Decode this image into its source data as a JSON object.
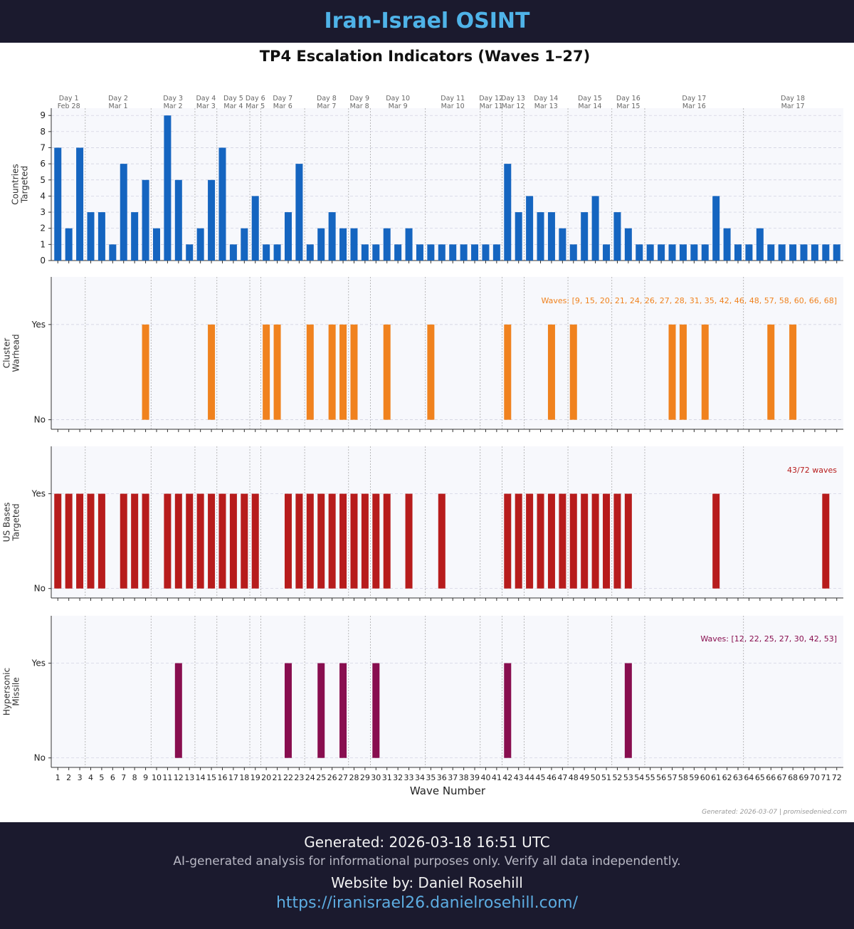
{
  "header": {
    "title": "Iran-Israel OSINT"
  },
  "figure": {
    "title": "TP4 Escalation Indicators (Waves 1–27)",
    "xlabel": "Wave Number",
    "note": "Generated: 2026-03-07 | promisedenied.com",
    "days": [
      {
        "label": "Day 1",
        "date": "Feb 28",
        "waves": [
          1,
          3
        ]
      },
      {
        "label": "Day 2",
        "date": "Mar 1",
        "waves": [
          4,
          9
        ]
      },
      {
        "label": "Day 3",
        "date": "Mar 2",
        "waves": [
          10,
          13
        ]
      },
      {
        "label": "Day 4",
        "date": "Mar 3",
        "waves": [
          14,
          15
        ]
      },
      {
        "label": "Day 5",
        "date": "Mar 4",
        "waves": [
          16,
          18
        ]
      },
      {
        "label": "Day 6",
        "date": "Mar 5",
        "waves": [
          19,
          19
        ]
      },
      {
        "label": "Day 7",
        "date": "Mar 6",
        "waves": [
          20,
          23
        ]
      },
      {
        "label": "Day 8",
        "date": "Mar 7",
        "waves": [
          24,
          27
        ]
      },
      {
        "label": "Day 9",
        "date": "Mar 8",
        "waves": [
          28,
          29
        ]
      },
      {
        "label": "Day 10",
        "date": "Mar 9",
        "waves": [
          30,
          34
        ]
      },
      {
        "label": "Day 11",
        "date": "Mar 10",
        "waves": [
          35,
          39
        ]
      },
      {
        "label": "Day 12",
        "date": "Mar 11",
        "waves": [
          40,
          41
        ]
      },
      {
        "label": "Day 13",
        "date": "Mar 12",
        "waves": [
          42,
          43
        ]
      },
      {
        "label": "Day 14",
        "date": "Mar 13",
        "waves": [
          44,
          47
        ]
      },
      {
        "label": "Day 15",
        "date": "Mar 14",
        "waves": [
          48,
          51
        ]
      },
      {
        "label": "Day 16",
        "date": "Mar 15",
        "waves": [
          52,
          54
        ]
      },
      {
        "label": "Day 17",
        "date": "Mar 16",
        "waves": [
          55,
          63
        ]
      },
      {
        "label": "Day 18",
        "date": "Mar 17",
        "waves": [
          64,
          72
        ]
      }
    ]
  },
  "chart_data": [
    {
      "type": "bar",
      "ylabel": [
        "Countries",
        "Targeted"
      ],
      "color": "#1565c0",
      "xlim": [
        0.4,
        72.6
      ],
      "ylim": [
        0,
        9.45
      ],
      "yticks": [
        0,
        1,
        2,
        3,
        4,
        5,
        6,
        7,
        8,
        9
      ],
      "grid": true,
      "x": [
        1,
        2,
        3,
        4,
        5,
        6,
        7,
        8,
        9,
        10,
        11,
        12,
        13,
        14,
        15,
        16,
        17,
        18,
        19,
        20,
        21,
        22,
        23,
        24,
        25,
        26,
        27,
        28,
        29,
        30,
        31,
        32,
        33,
        34,
        35,
        36,
        37,
        38,
        39,
        40,
        41,
        42,
        43,
        44,
        45,
        46,
        47,
        48,
        49,
        50,
        51,
        52,
        53,
        54,
        55,
        56,
        57,
        58,
        59,
        60,
        61,
        62,
        63,
        64,
        65,
        66,
        67,
        68,
        69,
        70,
        71,
        72
      ],
      "values": [
        7,
        2,
        7,
        3,
        3,
        1,
        6,
        3,
        5,
        2,
        9,
        5,
        1,
        2,
        5,
        7,
        1,
        2,
        4,
        1,
        1,
        3,
        6,
        1,
        2,
        3,
        2,
        2,
        1,
        1,
        2,
        1,
        2,
        1,
        1,
        1,
        1,
        1,
        1,
        1,
        1,
        6,
        3,
        4,
        3,
        3,
        2,
        1,
        3,
        4,
        1,
        3,
        2,
        1,
        1,
        1,
        1,
        1,
        1,
        1,
        4,
        2,
        1,
        1,
        2,
        1,
        1,
        1,
        1,
        1,
        1,
        1
      ]
    },
    {
      "type": "bar",
      "ylabel": [
        "Cluster",
        "Warhead"
      ],
      "color": "#f0821e",
      "xlim": [
        0.4,
        72.6
      ],
      "ylim": [
        -0.1,
        1.5
      ],
      "yticks": [
        {
          "value": 0,
          "label": "No"
        },
        {
          "value": 1,
          "label": "Yes"
        }
      ],
      "grid": true,
      "annotation": "Waves: [9, 15, 20, 21, 24, 26, 27, 28, 31, 35, 42, 46, 48, 57, 58, 60, 66, 68]",
      "x": [
        1,
        2,
        3,
        4,
        5,
        6,
        7,
        8,
        9,
        10,
        11,
        12,
        13,
        14,
        15,
        16,
        17,
        18,
        19,
        20,
        21,
        22,
        23,
        24,
        25,
        26,
        27,
        28,
        29,
        30,
        31,
        32,
        33,
        34,
        35,
        36,
        37,
        38,
        39,
        40,
        41,
        42,
        43,
        44,
        45,
        46,
        47,
        48,
        49,
        50,
        51,
        52,
        53,
        54,
        55,
        56,
        57,
        58,
        59,
        60,
        61,
        62,
        63,
        64,
        65,
        66,
        67,
        68,
        69,
        70,
        71,
        72
      ],
      "values": [
        0,
        0,
        0,
        0,
        0,
        0,
        0,
        0,
        1,
        0,
        0,
        0,
        0,
        0,
        1,
        0,
        0,
        0,
        0,
        1,
        1,
        0,
        0,
        1,
        0,
        1,
        1,
        1,
        0,
        0,
        1,
        0,
        0,
        0,
        1,
        0,
        0,
        0,
        0,
        0,
        0,
        1,
        0,
        0,
        0,
        1,
        0,
        1,
        0,
        0,
        0,
        0,
        0,
        0,
        0,
        0,
        1,
        1,
        0,
        1,
        0,
        0,
        0,
        0,
        0,
        1,
        0,
        1,
        0,
        0,
        0,
        0
      ]
    },
    {
      "type": "bar",
      "ylabel": [
        "US Bases",
        "Targeted"
      ],
      "color": "#b71c1c",
      "xlim": [
        0.4,
        72.6
      ],
      "ylim": [
        -0.1,
        1.5
      ],
      "yticks": [
        {
          "value": 0,
          "label": "No"
        },
        {
          "value": 1,
          "label": "Yes"
        }
      ],
      "grid": true,
      "annotation": "43/72 waves",
      "x": [
        1,
        2,
        3,
        4,
        5,
        6,
        7,
        8,
        9,
        10,
        11,
        12,
        13,
        14,
        15,
        16,
        17,
        18,
        19,
        20,
        21,
        22,
        23,
        24,
        25,
        26,
        27,
        28,
        29,
        30,
        31,
        32,
        33,
        34,
        35,
        36,
        37,
        38,
        39,
        40,
        41,
        42,
        43,
        44,
        45,
        46,
        47,
        48,
        49,
        50,
        51,
        52,
        53,
        54,
        55,
        56,
        57,
        58,
        59,
        60,
        61,
        62,
        63,
        64,
        65,
        66,
        67,
        68,
        69,
        70,
        71,
        72
      ],
      "values": [
        1,
        1,
        1,
        1,
        1,
        0,
        1,
        1,
        1,
        0,
        1,
        1,
        1,
        1,
        1,
        1,
        1,
        1,
        1,
        0,
        0,
        1,
        1,
        1,
        1,
        1,
        1,
        1,
        1,
        1,
        1,
        0,
        1,
        0,
        0,
        1,
        0,
        0,
        0,
        0,
        0,
        1,
        1,
        1,
        1,
        1,
        1,
        1,
        1,
        1,
        1,
        1,
        1,
        0,
        0,
        0,
        0,
        0,
        0,
        0,
        1,
        0,
        0,
        0,
        0,
        0,
        0,
        0,
        0,
        0,
        1,
        0
      ]
    },
    {
      "type": "bar",
      "ylabel": [
        "Hypersonic",
        "Missile"
      ],
      "color": "#880e4f",
      "xlim": [
        0.4,
        72.6
      ],
      "ylim": [
        -0.1,
        1.5
      ],
      "yticks": [
        {
          "value": 0,
          "label": "No"
        },
        {
          "value": 1,
          "label": "Yes"
        }
      ],
      "grid": true,
      "annotation": "Waves: [12, 22, 25, 27, 30, 42, 53]",
      "x": [
        1,
        2,
        3,
        4,
        5,
        6,
        7,
        8,
        9,
        10,
        11,
        12,
        13,
        14,
        15,
        16,
        17,
        18,
        19,
        20,
        21,
        22,
        23,
        24,
        25,
        26,
        27,
        28,
        29,
        30,
        31,
        32,
        33,
        34,
        35,
        36,
        37,
        38,
        39,
        40,
        41,
        42,
        43,
        44,
        45,
        46,
        47,
        48,
        49,
        50,
        51,
        52,
        53,
        54,
        55,
        56,
        57,
        58,
        59,
        60,
        61,
        62,
        63,
        64,
        65,
        66,
        67,
        68,
        69,
        70,
        71,
        72
      ],
      "values": [
        0,
        0,
        0,
        0,
        0,
        0,
        0,
        0,
        0,
        0,
        0,
        1,
        0,
        0,
        0,
        0,
        0,
        0,
        0,
        0,
        0,
        1,
        0,
        0,
        1,
        0,
        1,
        0,
        0,
        1,
        0,
        0,
        0,
        0,
        0,
        0,
        0,
        0,
        0,
        0,
        0,
        1,
        0,
        0,
        0,
        0,
        0,
        0,
        0,
        0,
        0,
        0,
        1,
        0,
        0,
        0,
        0,
        0,
        0,
        0,
        0,
        0,
        0,
        0,
        0,
        0,
        0,
        0,
        0,
        0,
        0,
        0
      ]
    }
  ],
  "footer": {
    "generated": "Generated: 2026-03-18 16:51 UTC",
    "disclaimer": "AI-generated analysis for informational purposes only. Verify all data independently.",
    "credit": "Website by: Daniel Rosehill",
    "url": "https://iranisrael26.danielrosehill.com/"
  }
}
